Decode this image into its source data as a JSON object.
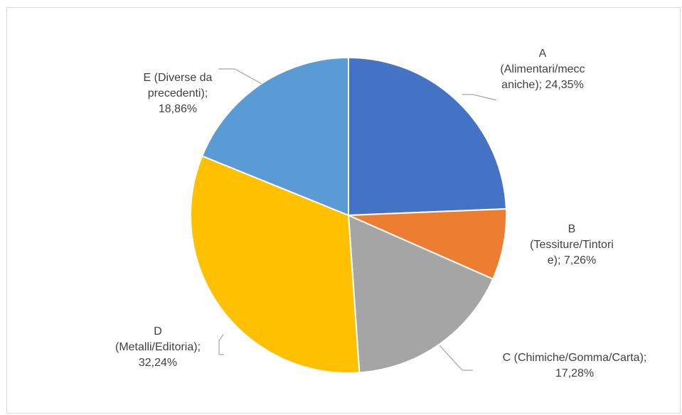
{
  "chart_data": {
    "type": "pie",
    "title": "",
    "series": [
      {
        "values": [
          {
            "category": "A (Alimentari/meccaniche)",
            "value": 24.35,
            "label_lines": [
              "A",
              "(Alimentari/mecc",
              "aniche); 24,35%"
            ],
            "color": "#4472C4"
          },
          {
            "category": "B (Tessiture/Tintorie)",
            "value": 7.26,
            "label_lines": [
              "B",
              "(Tessiture/Tintori",
              "e); 7,26%"
            ],
            "color": "#ED7D31"
          },
          {
            "category": "C (Chimiche/Gomma/Carta)",
            "value": 17.28,
            "label_lines": [
              "C (Chimiche/Gomma/Carta);",
              "17,28%"
            ],
            "color": "#A5A5A5"
          },
          {
            "category": "D (Metalli/Editoria)",
            "value": 32.24,
            "label_lines": [
              "D",
              "(Metalli/Editoria);",
              "32,24%"
            ],
            "color": "#FFC000"
          },
          {
            "category": "E (Diverse da precedenti)",
            "value": 18.86,
            "label_lines": [
              "E (Diverse da",
              "precedenti);",
              "18,86%"
            ],
            "color": "#5B9BD5"
          }
        ]
      }
    ],
    "start_angle": "12 o'clock",
    "direction": "clockwise",
    "legend": "none",
    "data_labels": "outside with leader lines"
  }
}
